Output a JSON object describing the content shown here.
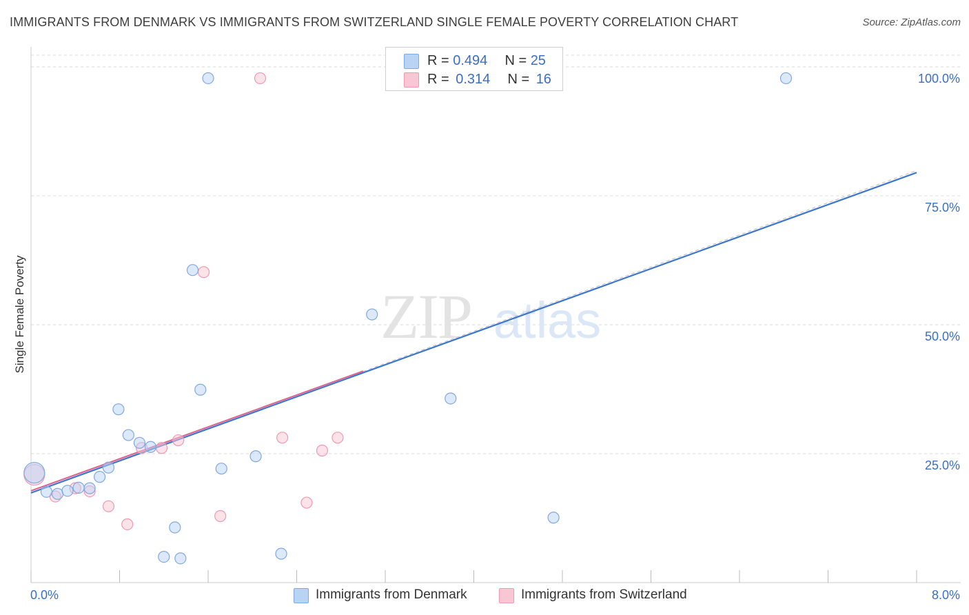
{
  "title": "IMMIGRANTS FROM DENMARK VS IMMIGRANTS FROM SWITZERLAND SINGLE FEMALE POVERTY CORRELATION CHART",
  "source": "Source: ZipAtlas.com",
  "watermark": {
    "zip": "ZIP",
    "atlas": "atlas"
  },
  "colors": {
    "denmark_fill": "#b9d3f5",
    "denmark_stroke": "#7fa8e0",
    "denmark_line": "#3a76d0",
    "switzerland_fill": "#f9c6d4",
    "switzerland_stroke": "#ee99b2",
    "switzerland_line": "#dd6690",
    "axis_label": "#3a6fc4",
    "grid": "#d9d9d9"
  },
  "legend": {
    "rows": [
      {
        "r_label": "R =",
        "r_value": "0.494",
        "n_label": "N =",
        "n_value": "25"
      },
      {
        "r_label": "R =",
        "r_value": "0.314",
        "n_label": "N =",
        "n_value": "16"
      }
    ]
  },
  "bottom_legend": {
    "denmark": "Immigrants from Denmark",
    "switzerland": "Immigrants from Switzerland"
  },
  "chart_data": {
    "type": "scatter",
    "title": "IMMIGRANTS FROM DENMARK VS IMMIGRANTS FROM SWITZERLAND SINGLE FEMALE POVERTY CORRELATION CHART",
    "xlabel": "",
    "ylabel": "Single Female Poverty",
    "xlim": [
      0,
      8
    ],
    "ylim": [
      0,
      100
    ],
    "x_tick_labels": [
      "0.0%",
      "8.0%"
    ],
    "y_tick_labels": [
      "25.0%",
      "50.0%",
      "75.0%",
      "100.0%"
    ],
    "y_ticks": [
      25,
      50,
      75,
      100
    ],
    "grid": true,
    "legend_position": "top-center",
    "series": [
      {
        "name": "Immigrants from Denmark",
        "R": 0.494,
        "N": 25,
        "trend": {
          "x": [
            0,
            8
          ],
          "y": [
            17.4,
            79.5
          ]
        },
        "points": [
          {
            "x": 0.03,
            "y": 21.3,
            "big": true
          },
          {
            "x": 0.14,
            "y": 17.6
          },
          {
            "x": 0.24,
            "y": 17.2
          },
          {
            "x": 0.33,
            "y": 17.8
          },
          {
            "x": 0.43,
            "y": 18.4
          },
          {
            "x": 0.53,
            "y": 18.3
          },
          {
            "x": 0.62,
            "y": 20.5
          },
          {
            "x": 0.7,
            "y": 22.3
          },
          {
            "x": 0.79,
            "y": 33.6
          },
          {
            "x": 0.88,
            "y": 28.6
          },
          {
            "x": 0.98,
            "y": 27.1
          },
          {
            "x": 1.08,
            "y": 26.3
          },
          {
            "x": 1.2,
            "y": 5.0
          },
          {
            "x": 1.3,
            "y": 10.7
          },
          {
            "x": 1.35,
            "y": 4.7
          },
          {
            "x": 1.46,
            "y": 60.6
          },
          {
            "x": 1.53,
            "y": 37.4
          },
          {
            "x": 1.6,
            "y": 97.8
          },
          {
            "x": 1.72,
            "y": 22.1
          },
          {
            "x": 2.03,
            "y": 24.5
          },
          {
            "x": 2.26,
            "y": 5.6
          },
          {
            "x": 3.08,
            "y": 52.0
          },
          {
            "x": 3.79,
            "y": 35.7
          },
          {
            "x": 4.72,
            "y": 12.6
          },
          {
            "x": 6.82,
            "y": 97.8
          }
        ]
      },
      {
        "name": "Immigrants from Switzerland",
        "R": 0.314,
        "N": 16,
        "trend": {
          "x": [
            0,
            3.0
          ],
          "y": [
            17.8,
            41.0
          ]
        },
        "points": [
          {
            "x": 0.03,
            "y": 20.9,
            "big": true
          },
          {
            "x": 0.22,
            "y": 16.7
          },
          {
            "x": 0.4,
            "y": 18.3
          },
          {
            "x": 0.53,
            "y": 17.7
          },
          {
            "x": 0.7,
            "y": 14.8
          },
          {
            "x": 0.87,
            "y": 11.3
          },
          {
            "x": 1.0,
            "y": 26.1
          },
          {
            "x": 1.18,
            "y": 26.1
          },
          {
            "x": 1.33,
            "y": 27.6
          },
          {
            "x": 1.56,
            "y": 60.2
          },
          {
            "x": 1.71,
            "y": 12.9
          },
          {
            "x": 2.07,
            "y": 97.8
          },
          {
            "x": 2.27,
            "y": 28.1
          },
          {
            "x": 2.49,
            "y": 15.5
          },
          {
            "x": 2.63,
            "y": 25.6
          },
          {
            "x": 2.77,
            "y": 28.1
          }
        ]
      }
    ]
  }
}
